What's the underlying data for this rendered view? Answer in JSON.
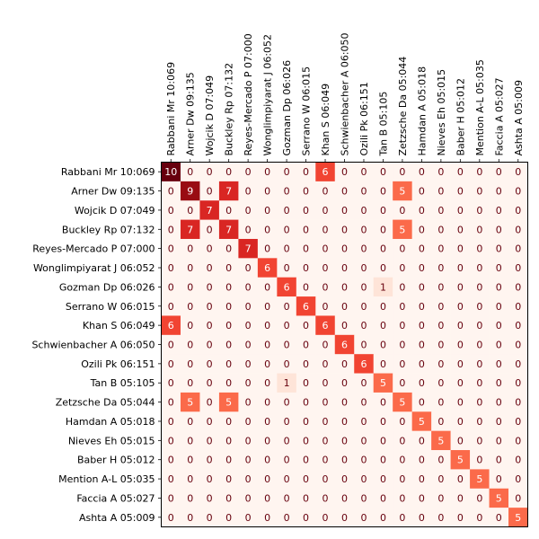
{
  "chart_data": {
    "type": "heatmap",
    "title": "",
    "xlabel": "",
    "ylabel": "",
    "labels": [
      "Rabbani Mr 10:069",
      "Arner Dw 09:135",
      "Wojcik D 07:049",
      "Buckley Rp 07:132",
      "Reyes-Mercado P 07:000",
      "Wonglimpiyarat J 06:052",
      "Gozman Dp 06:026",
      "Serrano W 06:015",
      "Khan S 06:049",
      "Schwienbacher A 06:050",
      "Ozili Pk 06:151",
      "Tan B 05:105",
      "Zetzsche Da 05:044",
      "Hamdan A 05:018",
      "Nieves Eh 05:015",
      "Baber H 05:012",
      "Mention A-L 05:035",
      "Faccia A 05:027",
      "Ashta A 05:009"
    ],
    "values": [
      [
        10,
        0,
        0,
        0,
        0,
        0,
        0,
        0,
        6,
        0,
        0,
        0,
        0,
        0,
        0,
        0,
        0,
        0,
        0
      ],
      [
        0,
        9,
        0,
        7,
        0,
        0,
        0,
        0,
        0,
        0,
        0,
        0,
        5,
        0,
        0,
        0,
        0,
        0,
        0
      ],
      [
        0,
        0,
        7,
        0,
        0,
        0,
        0,
        0,
        0,
        0,
        0,
        0,
        0,
        0,
        0,
        0,
        0,
        0,
        0
      ],
      [
        0,
        7,
        0,
        7,
        0,
        0,
        0,
        0,
        0,
        0,
        0,
        0,
        5,
        0,
        0,
        0,
        0,
        0,
        0
      ],
      [
        0,
        0,
        0,
        0,
        7,
        0,
        0,
        0,
        0,
        0,
        0,
        0,
        0,
        0,
        0,
        0,
        0,
        0,
        0
      ],
      [
        0,
        0,
        0,
        0,
        0,
        6,
        0,
        0,
        0,
        0,
        0,
        0,
        0,
        0,
        0,
        0,
        0,
        0,
        0
      ],
      [
        0,
        0,
        0,
        0,
        0,
        0,
        6,
        0,
        0,
        0,
        0,
        1,
        0,
        0,
        0,
        0,
        0,
        0,
        0
      ],
      [
        0,
        0,
        0,
        0,
        0,
        0,
        0,
        6,
        0,
        0,
        0,
        0,
        0,
        0,
        0,
        0,
        0,
        0,
        0
      ],
      [
        6,
        0,
        0,
        0,
        0,
        0,
        0,
        0,
        6,
        0,
        0,
        0,
        0,
        0,
        0,
        0,
        0,
        0,
        0
      ],
      [
        0,
        0,
        0,
        0,
        0,
        0,
        0,
        0,
        0,
        6,
        0,
        0,
        0,
        0,
        0,
        0,
        0,
        0,
        0
      ],
      [
        0,
        0,
        0,
        0,
        0,
        0,
        0,
        0,
        0,
        0,
        6,
        0,
        0,
        0,
        0,
        0,
        0,
        0,
        0
      ],
      [
        0,
        0,
        0,
        0,
        0,
        0,
        1,
        0,
        0,
        0,
        0,
        5,
        0,
        0,
        0,
        0,
        0,
        0,
        0
      ],
      [
        0,
        5,
        0,
        5,
        0,
        0,
        0,
        0,
        0,
        0,
        0,
        0,
        5,
        0,
        0,
        0,
        0,
        0,
        0
      ],
      [
        0,
        0,
        0,
        0,
        0,
        0,
        0,
        0,
        0,
        0,
        0,
        0,
        0,
        5,
        0,
        0,
        0,
        0,
        0
      ],
      [
        0,
        0,
        0,
        0,
        0,
        0,
        0,
        0,
        0,
        0,
        0,
        0,
        0,
        0,
        5,
        0,
        0,
        0,
        0
      ],
      [
        0,
        0,
        0,
        0,
        0,
        0,
        0,
        0,
        0,
        0,
        0,
        0,
        0,
        0,
        0,
        5,
        0,
        0,
        0
      ],
      [
        0,
        0,
        0,
        0,
        0,
        0,
        0,
        0,
        0,
        0,
        0,
        0,
        0,
        0,
        0,
        0,
        5,
        0,
        0
      ],
      [
        0,
        0,
        0,
        0,
        0,
        0,
        0,
        0,
        0,
        0,
        0,
        0,
        0,
        0,
        0,
        0,
        0,
        5,
        0
      ],
      [
        0,
        0,
        0,
        0,
        0,
        0,
        0,
        0,
        0,
        0,
        0,
        0,
        0,
        0,
        0,
        0,
        0,
        0,
        5
      ]
    ],
    "colormap": "Reds",
    "colors": {
      "low": "#fff5f0",
      "mid": "#fb6a4a",
      "high": "#67000d",
      "text_dark_bg": "#ffffff",
      "text_light_bg": "#67000d"
    },
    "legend": "none",
    "grid": false
  }
}
